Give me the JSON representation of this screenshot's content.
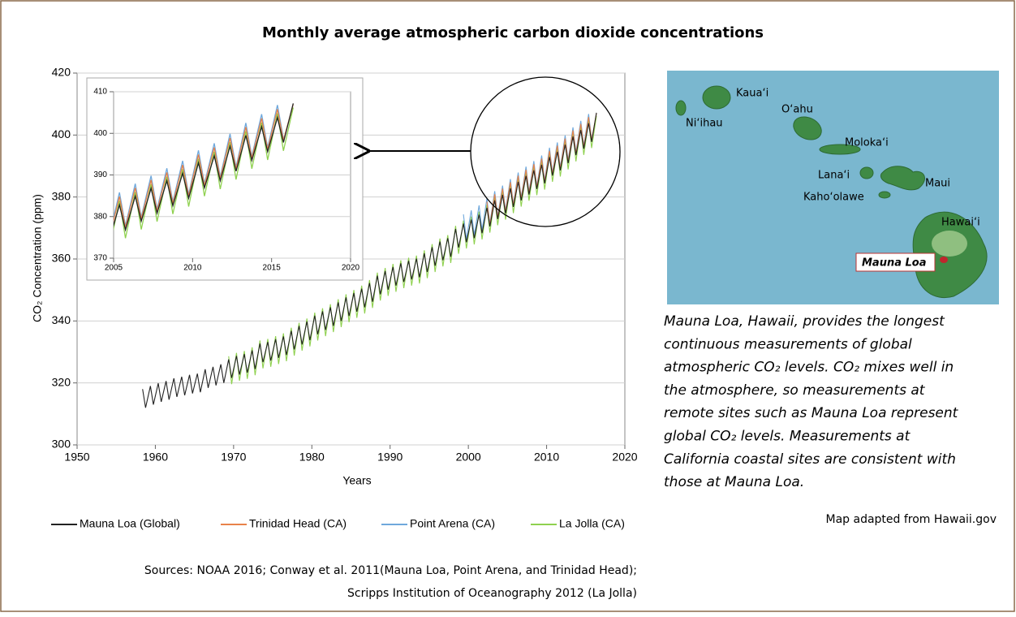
{
  "chart_data": [
    {
      "type": "line",
      "title": "Monthly average atmospheric carbon dioxide concentrations",
      "xlabel": "Years",
      "ylabel": "CO₂ Concentration (ppm)",
      "xlim": [
        1950,
        2020
      ],
      "xticks": [
        1950,
        1960,
        1970,
        1980,
        1990,
        2000,
        2010,
        2020
      ],
      "ylim": [
        300,
        420
      ],
      "yticks": [
        300,
        320,
        340,
        360,
        380,
        400,
        420
      ],
      "grid": true,
      "legend": "bottom",
      "x": [
        1958.37,
        1958.75,
        1959.37,
        1959.75,
        1960.37,
        1960.75,
        1961.37,
        1961.75,
        1962.37,
        1962.75,
        1963.37,
        1963.75,
        1964.37,
        1964.75,
        1965.37,
        1965.75,
        1966.37,
        1966.75,
        1967.37,
        1967.75,
        1968.37,
        1968.75,
        1969.37,
        1969.75,
        1970.37,
        1970.75,
        1971.37,
        1971.75,
        1972.37,
        1972.75,
        1973.37,
        1973.75,
        1974.37,
        1974.75,
        1975.37,
        1975.75,
        1976.37,
        1976.75,
        1977.37,
        1977.75,
        1978.37,
        1978.75,
        1979.37,
        1979.75,
        1980.37,
        1980.75,
        1981.37,
        1981.75,
        1982.37,
        1982.75,
        1983.37,
        1983.75,
        1984.37,
        1984.75,
        1985.37,
        1985.75,
        1986.37,
        1986.75,
        1987.37,
        1987.75,
        1988.37,
        1988.75,
        1989.37,
        1989.75,
        1990.37,
        1990.75,
        1991.37,
        1991.75,
        1992.37,
        1992.75,
        1993.37,
        1993.75,
        1994.37,
        1994.75,
        1995.37,
        1995.75,
        1996.37,
        1996.75,
        1997.37,
        1997.75,
        1998.37,
        1998.75,
        1999.37,
        1999.75,
        2000.37,
        2000.75,
        2001.37,
        2001.75,
        2002.37,
        2002.75,
        2003.37,
        2003.75,
        2004.37,
        2004.75,
        2005.37,
        2005.75,
        2006.37,
        2006.75,
        2007.37,
        2007.75,
        2008.37,
        2008.75,
        2009.37,
        2009.75,
        2010.37,
        2010.75,
        2011.37,
        2011.75,
        2012.37,
        2012.75,
        2013.37,
        2013.75,
        2014.37,
        2014.75,
        2015.37,
        2015.75,
        2016.37
      ],
      "series": [
        {
          "name": "Mauna Loa (Global)",
          "color": "#222222",
          "values": [
            318.0,
            312.0,
            319.0,
            313.0,
            319.9,
            313.9,
            320.6,
            314.6,
            321.5,
            315.5,
            322.0,
            316.0,
            322.6,
            316.6,
            323.0,
            317.0,
            324.4,
            318.4,
            325.2,
            319.2,
            326.0,
            320.0,
            327.6,
            321.6,
            328.7,
            322.7,
            329.3,
            323.3,
            330.5,
            324.5,
            332.7,
            326.7,
            333.2,
            327.2,
            334.1,
            328.1,
            335.0,
            329.0,
            336.8,
            330.8,
            338.4,
            332.4,
            339.8,
            333.8,
            341.7,
            335.7,
            343.1,
            337.1,
            344.4,
            338.4,
            346.0,
            340.0,
            347.6,
            341.6,
            349.0,
            343.0,
            350.4,
            344.4,
            352.2,
            346.2,
            354.6,
            348.6,
            356.1,
            350.1,
            357.4,
            351.4,
            358.6,
            352.6,
            359.4,
            353.4,
            360.1,
            354.1,
            361.8,
            355.8,
            363.8,
            357.8,
            365.6,
            359.6,
            366.7,
            360.7,
            369.7,
            363.7,
            371.4,
            365.4,
            372.7,
            366.7,
            374.3,
            368.3,
            376.5,
            370.5,
            378.9,
            372.9,
            380.7,
            374.7,
            382.8,
            376.8,
            384.9,
            378.9,
            386.8,
            380.8,
            388.6,
            382.6,
            390.4,
            384.4,
            392.9,
            386.9,
            394.6,
            388.6,
            396.9,
            390.9,
            399.5,
            393.5,
            401.6,
            395.6,
            403.8,
            397.8,
            407.2
          ]
        },
        {
          "name": "Trinidad Head (CA)",
          "color": "#e8824a",
          "values": [
            null,
            null,
            null,
            null,
            null,
            null,
            null,
            null,
            null,
            null,
            null,
            null,
            null,
            null,
            null,
            null,
            null,
            null,
            null,
            null,
            null,
            null,
            null,
            null,
            null,
            null,
            null,
            null,
            null,
            null,
            null,
            null,
            null,
            null,
            null,
            null,
            null,
            null,
            null,
            null,
            null,
            null,
            null,
            null,
            null,
            null,
            null,
            null,
            null,
            null,
            null,
            null,
            null,
            null,
            null,
            null,
            null,
            null,
            null,
            null,
            null,
            null,
            null,
            null,
            null,
            null,
            null,
            null,
            null,
            null,
            null,
            null,
            null,
            null,
            null,
            null,
            null,
            null,
            null,
            null,
            null,
            null,
            null,
            null,
            null,
            null,
            null,
            null,
            378.5,
            371.0,
            380.9,
            373.4,
            382.7,
            375.2,
            384.8,
            377.3,
            386.9,
            379.4,
            388.8,
            381.3,
            390.6,
            383.1,
            392.4,
            384.9,
            394.9,
            387.4,
            396.6,
            389.1,
            398.9,
            391.4,
            401.5,
            394.0,
            403.6,
            396.1,
            405.8,
            398.3,
            407.0
          ]
        },
        {
          "name": "Point Arena (CA)",
          "color": "#6fa8dc",
          "values": [
            null,
            null,
            null,
            null,
            null,
            null,
            null,
            null,
            null,
            null,
            null,
            null,
            null,
            null,
            null,
            null,
            null,
            null,
            null,
            null,
            null,
            null,
            null,
            null,
            null,
            null,
            null,
            null,
            null,
            null,
            null,
            null,
            null,
            null,
            null,
            null,
            null,
            null,
            null,
            null,
            null,
            null,
            null,
            null,
            null,
            null,
            null,
            null,
            null,
            null,
            null,
            null,
            null,
            null,
            null,
            null,
            null,
            null,
            null,
            null,
            null,
            null,
            null,
            null,
            null,
            null,
            null,
            null,
            null,
            null,
            null,
            null,
            null,
            null,
            null,
            null,
            null,
            null,
            null,
            null,
            null,
            null,
            374.4,
            366.4,
            375.7,
            367.7,
            377.3,
            369.3,
            379.5,
            371.5,
            381.9,
            373.9,
            383.7,
            375.7,
            385.8,
            377.8,
            387.9,
            379.9,
            389.8,
            381.8,
            391.6,
            383.6,
            393.4,
            385.4,
            395.9,
            387.9,
            397.6,
            389.6,
            399.9,
            391.9,
            402.5,
            394.5,
            404.6,
            396.6,
            406.8,
            398.8,
            null
          ]
        },
        {
          "name": "La Jolla (CA)",
          "color": "#8fd14f",
          "values": [
            null,
            null,
            null,
            null,
            null,
            null,
            null,
            null,
            null,
            null,
            null,
            null,
            null,
            null,
            null,
            null,
            null,
            null,
            null,
            null,
            null,
            null,
            328.6,
            319.6,
            329.7,
            320.7,
            330.3,
            321.3,
            331.5,
            322.5,
            333.7,
            324.7,
            334.2,
            325.2,
            335.1,
            326.1,
            336.0,
            327.0,
            337.8,
            328.8,
            339.4,
            330.4,
            340.8,
            331.8,
            342.7,
            333.7,
            344.1,
            335.1,
            345.4,
            336.4,
            347.0,
            338.0,
            348.6,
            339.6,
            350.0,
            341.0,
            351.4,
            342.4,
            353.2,
            344.2,
            355.6,
            346.6,
            357.1,
            348.1,
            358.4,
            349.4,
            359.6,
            350.6,
            360.4,
            351.4,
            361.1,
            352.1,
            362.8,
            353.8,
            364.8,
            355.8,
            366.6,
            357.6,
            367.7,
            358.7,
            370.7,
            361.7,
            372.4,
            363.4,
            373.7,
            364.7,
            375.3,
            366.3,
            377.5,
            368.5,
            379.9,
            370.9,
            381.7,
            372.7,
            383.8,
            374.8,
            385.9,
            376.9,
            387.8,
            378.8,
            389.6,
            380.6,
            391.4,
            382.4,
            393.9,
            384.9,
            395.6,
            386.6,
            397.9,
            388.9,
            400.5,
            391.5,
            402.6,
            393.6,
            404.8,
            395.8,
            406.2
          ]
        }
      ]
    },
    {
      "type": "line",
      "xlim": [
        2005,
        2020
      ],
      "xticks": [
        2005,
        2010,
        2015,
        2020
      ],
      "ylim": [
        370,
        410
      ],
      "yticks": [
        370,
        380,
        390,
        400,
        410
      ],
      "grid": true
    }
  ],
  "map": {
    "islands": [
      "Kaua‘i",
      "Ni‘ihau",
      "O‘ahu",
      "Moloka‘i",
      "Lana‘i",
      "Maui",
      "Kaho‘olawe",
      "Hawai‘i"
    ],
    "site": "Mauna Loa",
    "caption": [
      "Mauna Loa, Hawaii, provides the longest",
      "continuous measurements of global",
      "atmospheric CO₂ levels. CO₂ mixes well in",
      "the atmosphere, so measurements at",
      "remote sites such as Mauna Loa represent",
      "global CO₂ levels. Measurements at",
      "California coastal sites are consistent with",
      "those at Mauna Loa."
    ],
    "credit": "Map adapted from Hawaii.gov"
  },
  "sources": [
    "Sources:  NOAA 2016; Conway et al. 2011(Mauna Loa, Point Arena, and Trinidad Head);",
    "Scripps Institution of Oceanography 2012 (La Jolla)"
  ]
}
